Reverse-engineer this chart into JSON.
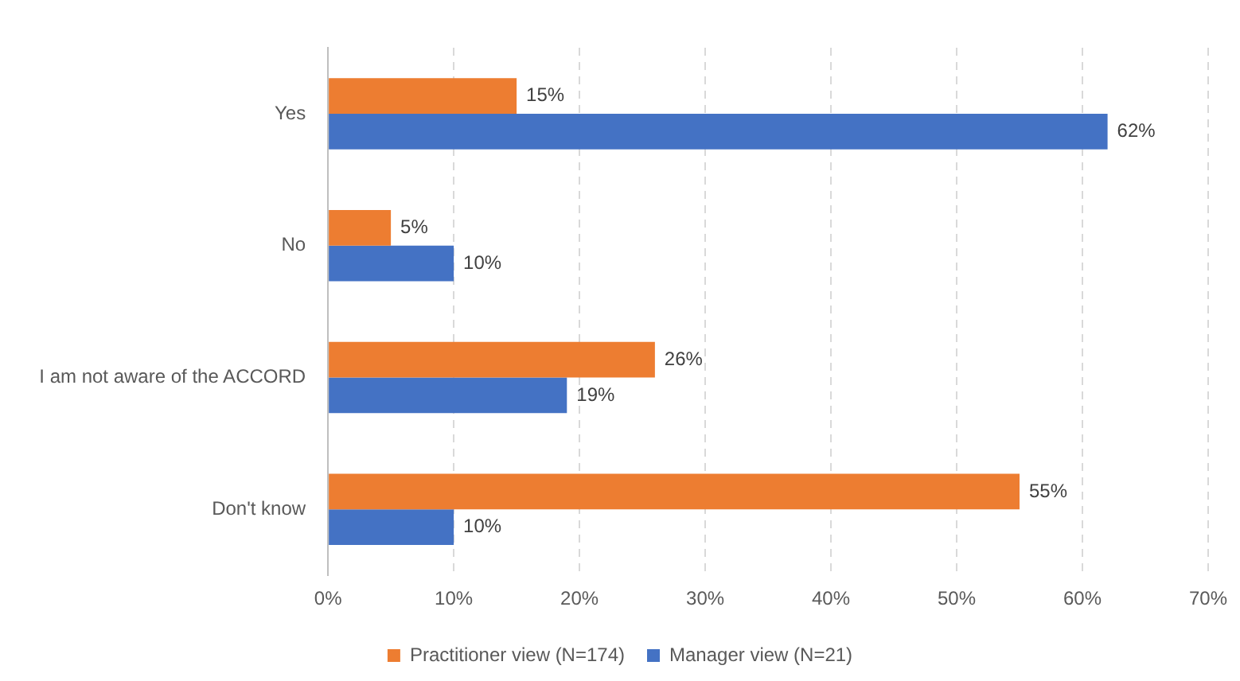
{
  "chart_data": {
    "type": "bar",
    "orientation": "horizontal",
    "categories": [
      "Yes",
      "No",
      "I am not aware of the ACCORD",
      "Don't know"
    ],
    "series": [
      {
        "name": "Practitioner view (N=174)",
        "color": "#ed7d31",
        "values": [
          15,
          5,
          26,
          55
        ],
        "value_labels": [
          "15%",
          "5%",
          "26%",
          "55%"
        ]
      },
      {
        "name": "Manager view (N=21)",
        "color": "#4472c4",
        "values": [
          62,
          10,
          19,
          10
        ],
        "value_labels": [
          "62%",
          "10%",
          "19%",
          "10%"
        ]
      }
    ],
    "xlim": [
      0,
      70
    ],
    "xticks": [
      {
        "value": 0,
        "label": "0%"
      },
      {
        "value": 10,
        "label": "10%"
      },
      {
        "value": 20,
        "label": "20%"
      },
      {
        "value": 30,
        "label": "30%"
      },
      {
        "value": 40,
        "label": "40%"
      },
      {
        "value": 50,
        "label": "50%"
      },
      {
        "value": 60,
        "label": "60%"
      },
      {
        "value": 70,
        "label": "70%"
      }
    ],
    "grid": "x",
    "legend": "bottom"
  }
}
